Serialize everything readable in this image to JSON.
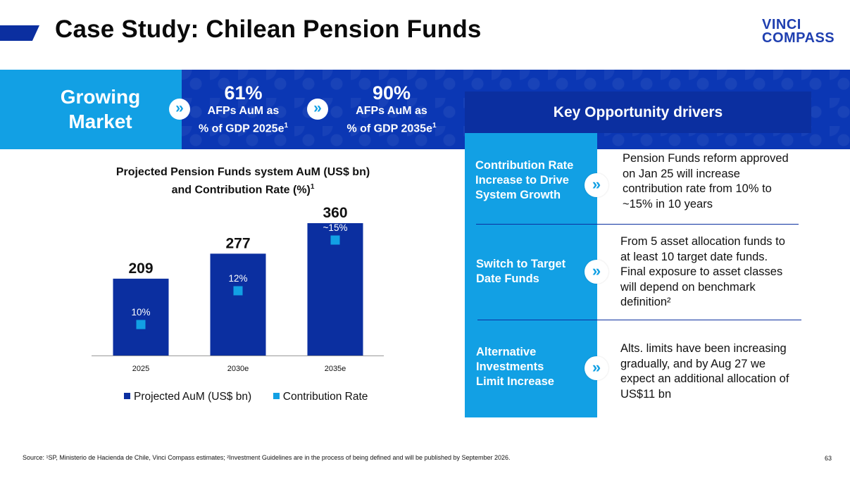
{
  "page": {
    "title": "Case Study: Chilean Pension Funds",
    "logo_line1": "VINCI",
    "logo_line2": "COMPASS",
    "page_number": "63",
    "source": "Source: ¹SP, Ministerio de Hacienda de Chile, Vinci Compass estimates; ²Investment Guidelines are in the process of being defined and will be published by September 2026."
  },
  "banner": {
    "label_line1": "Growing",
    "label_line2": "Market",
    "stats": [
      {
        "value": "61%",
        "line1": "AFPs AuM as",
        "line2": "% of GDP 2025e",
        "note": "1"
      },
      {
        "value": "90%",
        "line1": "AFPs AuM as",
        "line2": "% of GDP 2035e",
        "note": "1"
      }
    ],
    "chevron": "»"
  },
  "drivers": {
    "header": "Key Opportunity drivers",
    "items": [
      {
        "label": "Contribution Rate Increase to Drive System Growth",
        "text": "Pension Funds reform approved on Jan 25 will increase contribution rate from 10% to ~15% in 10 years"
      },
      {
        "label": "Switch to Target Date Funds",
        "text": "From 5 asset allocation funds to at least 10 target date funds. Final exposure to asset classes will depend on benchmark definition²"
      },
      {
        "label": "Alternative Investments Limit Increase",
        "text": "Alts. limits have been increasing gradually, and by Aug 27 we expect an additional allocation of US$11 bn"
      }
    ]
  },
  "chart_data": {
    "type": "bar",
    "title_line1": "Projected Pension Funds system AuM (US$ bn)",
    "title_line2": "and Contribution Rate (%)",
    "title_note": "1",
    "categories": [
      "2025",
      "2030e",
      "2035e"
    ],
    "series": [
      {
        "name": "Projected AuM (US$ bn)",
        "values": [
          209,
          277,
          360
        ],
        "labels": [
          "209",
          "277",
          "360"
        ],
        "color": "#0b2fa0"
      },
      {
        "name": "Contribution Rate",
        "values": [
          10,
          12,
          15
        ],
        "labels": [
          "10%",
          "12%",
          "~15%"
        ],
        "color": "#12a0e4"
      }
    ],
    "ylim": [
      0,
      360
    ],
    "legend_position": "bottom"
  },
  "colors": {
    "navy": "#0b2fa0",
    "cyan": "#12a0e4",
    "banner_blue": "#0b37b4"
  }
}
